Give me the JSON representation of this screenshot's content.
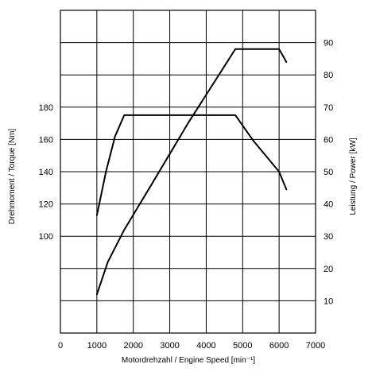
{
  "chart_data": {
    "type": "line",
    "xlabel": "Motordrehzahl / Engine Speed [min⁻¹]",
    "ylabel_left": "Drehmoment / Torque [Nm]",
    "ylabel_right": "Leistung / Power [kW]",
    "x_range": [
      0,
      7000
    ],
    "x_ticks": [
      0,
      1000,
      2000,
      3000,
      4000,
      5000,
      6000,
      7000
    ],
    "y_left_ticks": [
      100,
      120,
      140,
      160,
      180
    ],
    "y_right_range": [
      0,
      100
    ],
    "y_right_ticks": [
      10,
      20,
      30,
      40,
      50,
      60,
      70,
      80,
      90
    ],
    "grid": true,
    "series": [
      {
        "axis": "left",
        "x": [
          1000,
          1250,
          1500,
          1750,
          4800,
          5300,
          6000,
          6200
        ],
        "y": [
          113,
          140,
          162,
          175,
          175,
          159,
          140,
          129
        ]
      },
      {
        "axis": "right",
        "x": [
          1000,
          1300,
          1750,
          2500,
          3500,
          4800,
          6000,
          6200
        ],
        "y": [
          12,
          22,
          32,
          46,
          65,
          88,
          88,
          84
        ]
      }
    ]
  }
}
